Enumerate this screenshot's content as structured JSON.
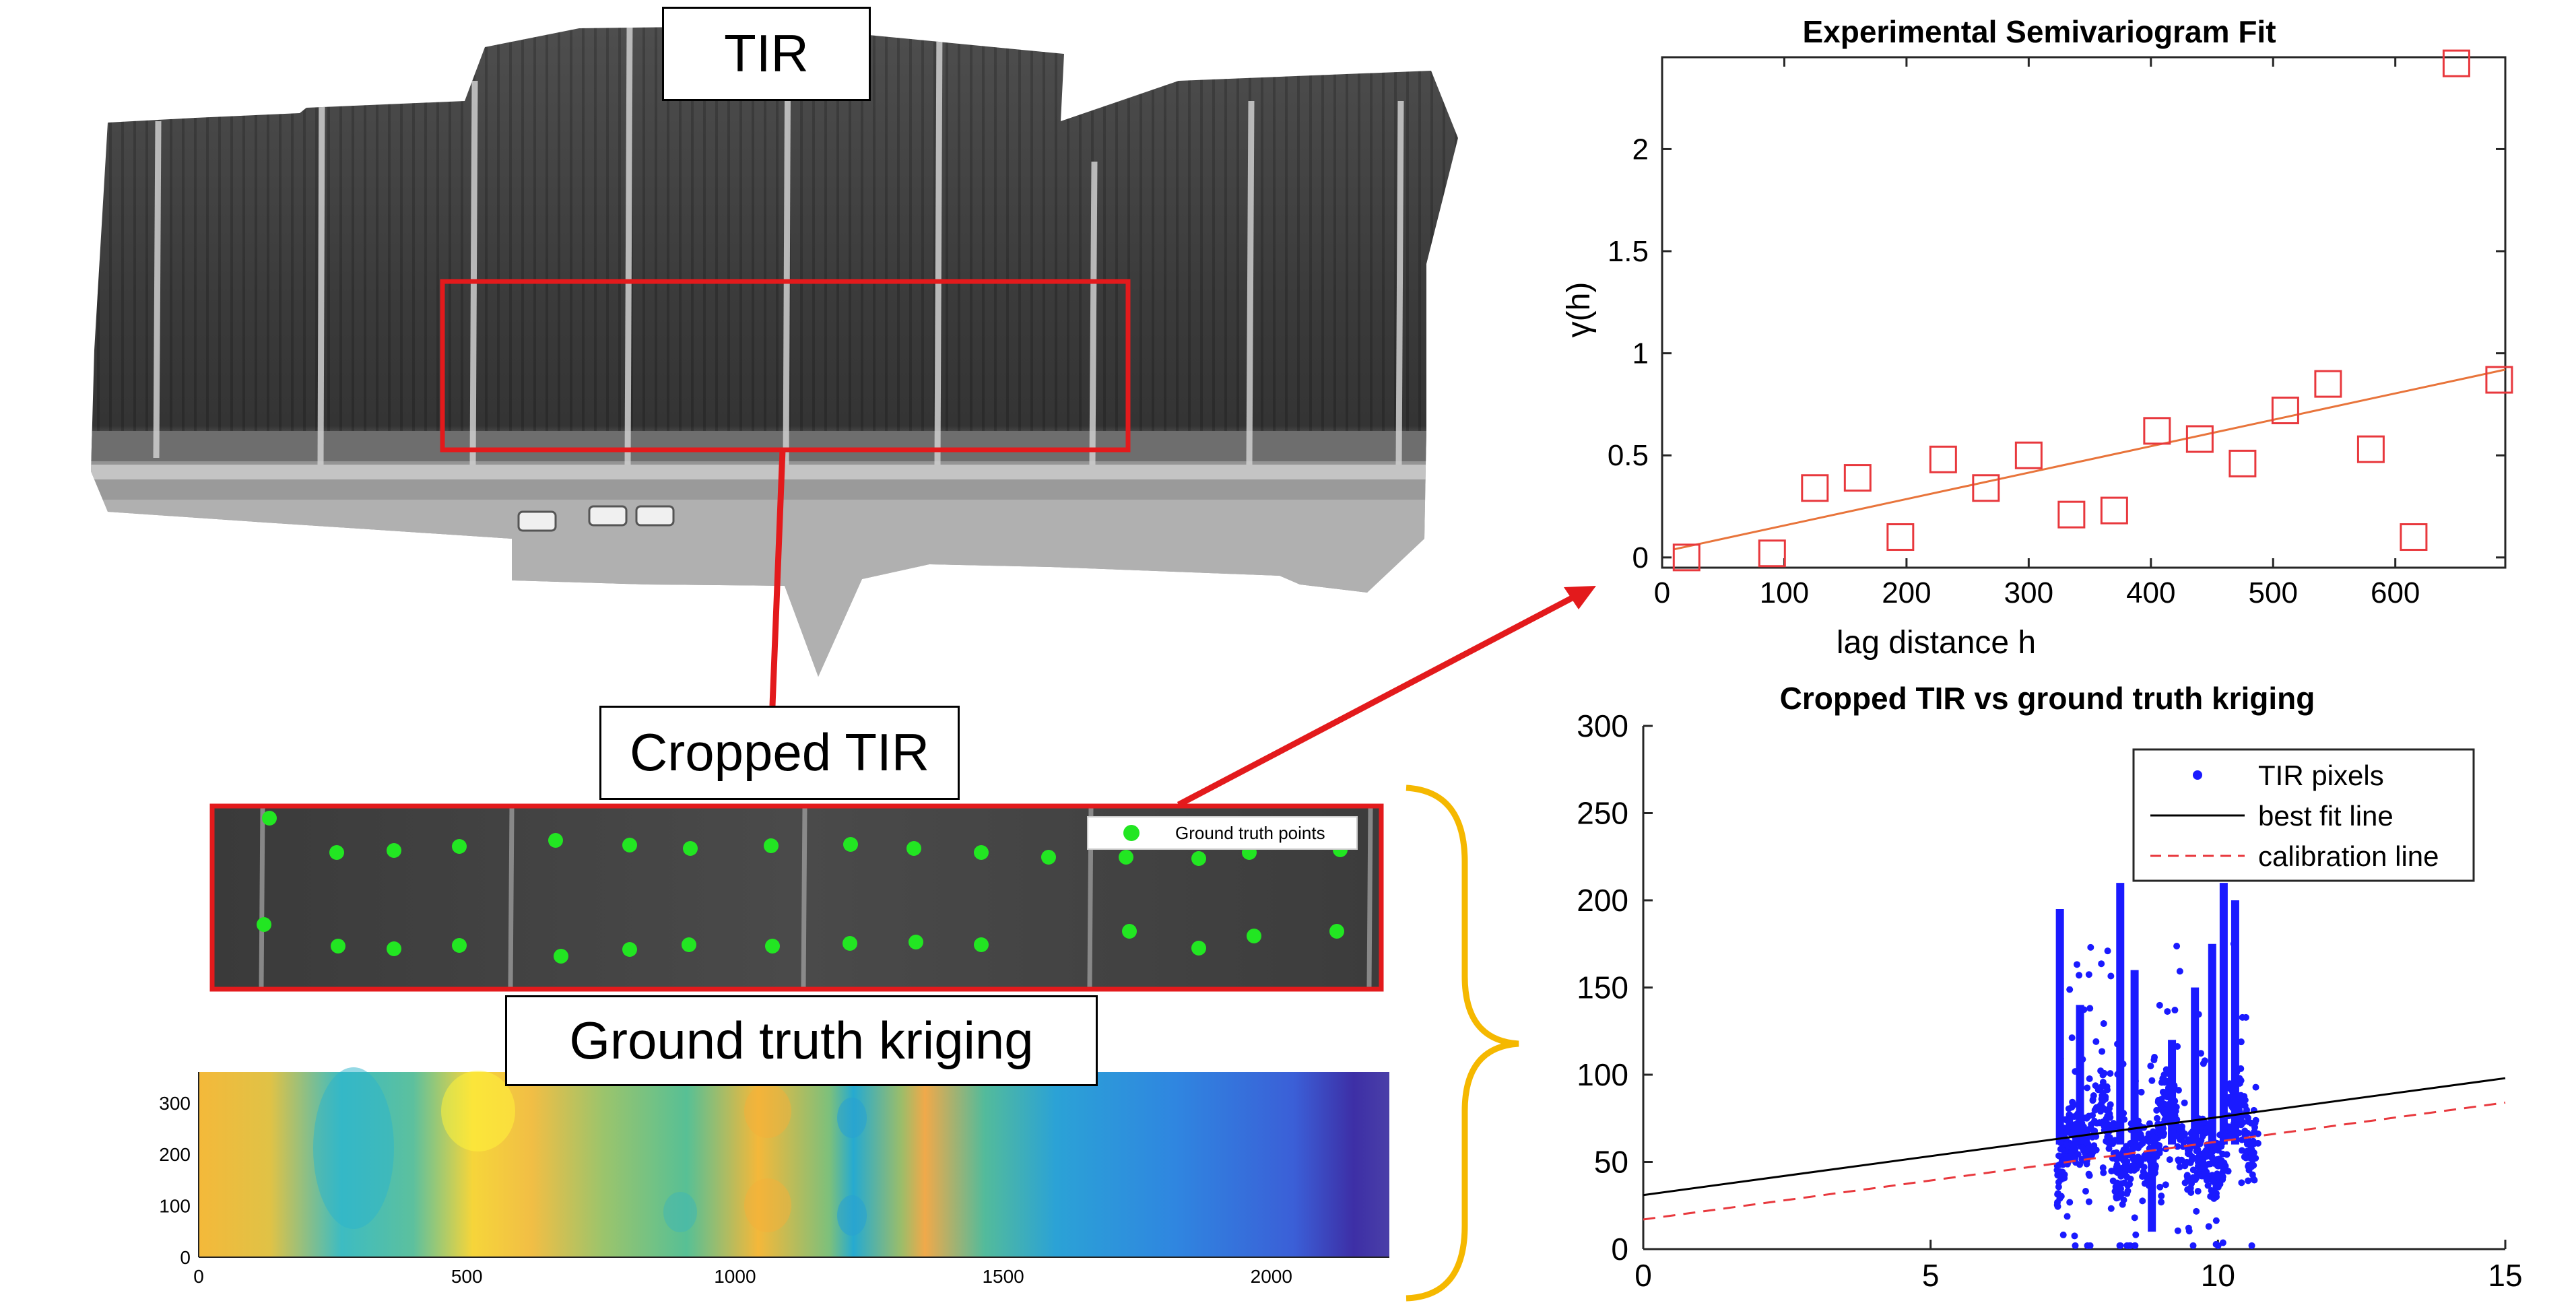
{
  "labels": {
    "tir": "TIR",
    "cropped_tir": "Cropped TIR",
    "ground_truth_kriging": "Ground truth kriging"
  },
  "cropped_legend": "Ground truth points",
  "colors": {
    "crop_box": "#e31a1c",
    "arrow": "#e31a1c",
    "ground_truth_points": "#22e622",
    "brace": "#f5b800",
    "semivariogram_markers": "#e8383d",
    "semivariogram_fit": "#e8743b",
    "tir_pixels": "#1a1aff",
    "best_fit": "#000000",
    "calibration": "#e8383d"
  },
  "chart_data": [
    {
      "type": "scatter",
      "title": "Experimental Semivariogram Fit",
      "xlabel": "lag distance h",
      "ylabel": "γ(h)",
      "xlim": [
        0,
        690
      ],
      "ylim": [
        -0.05,
        2.45
      ],
      "xticks": [
        0,
        100,
        200,
        300,
        400,
        500,
        600
      ],
      "yticks": [
        0,
        0.5,
        1,
        1.5,
        2
      ],
      "ytick_labels": [
        "0",
        "0.5",
        "1",
        "1.5",
        "2"
      ],
      "series": [
        {
          "x": [
            20,
            90,
            125,
            160,
            195,
            230,
            265,
            300,
            335,
            370,
            405,
            440,
            475,
            510,
            545,
            580,
            615,
            650,
            685
          ],
          "y": [
            0.0,
            0.02,
            0.34,
            0.39,
            0.1,
            0.48,
            0.34,
            0.5,
            0.21,
            0.23,
            0.62,
            0.58,
            0.46,
            0.72,
            0.85,
            0.53,
            0.1,
            2.42,
            0.87
          ],
          "marker": "square"
        }
      ],
      "fit_line": {
        "x": [
          10,
          690
        ],
        "y": [
          0.04,
          0.92
        ]
      }
    },
    {
      "type": "scatter",
      "title": "Cropped TIR vs ground truth kriging",
      "xlim": [
        0,
        15
      ],
      "ylim": [
        0,
        300
      ],
      "xticks": [
        0,
        5,
        10,
        15
      ],
      "yticks": [
        0,
        50,
        100,
        150,
        200,
        250,
        300
      ],
      "legend": [
        "TIR pixels",
        "best fit line",
        "calibration line"
      ],
      "legend_position": "top-right",
      "cluster_x_range": [
        7.2,
        10.7
      ],
      "cluster_y_range": [
        2,
        215
      ],
      "best_fit_line": {
        "x": [
          0,
          15
        ],
        "y": [
          31,
          98
        ]
      },
      "calibration_line": {
        "x": [
          0,
          15
        ],
        "y": [
          17,
          84
        ]
      }
    },
    {
      "type": "heatmap",
      "xlim": [
        0,
        2220
      ],
      "ylim": [
        0,
        360
      ],
      "xticks": [
        0,
        500,
        1000,
        1500,
        2000
      ],
      "yticks": [
        0,
        100,
        200,
        300
      ],
      "colormap": "parula"
    }
  ]
}
